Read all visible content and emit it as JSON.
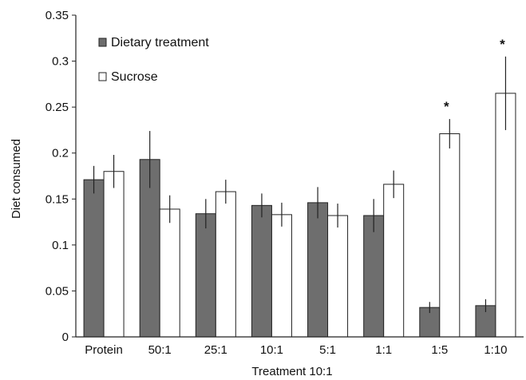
{
  "chart_data": {
    "type": "bar",
    "title": "",
    "xlabel": "Treatment 10:1",
    "ylabel": "Diet consumed",
    "categories": [
      "Protein",
      "50:1",
      "25:1",
      "10:1",
      "5:1",
      "1:1",
      "1:5",
      "1:10"
    ],
    "series": [
      {
        "name": "Dietary treatment",
        "color": "#6e6e6e",
        "values": [
          0.171,
          0.193,
          0.134,
          0.143,
          0.146,
          0.132,
          0.032,
          0.034
        ],
        "error": [
          0.015,
          0.031,
          0.016,
          0.013,
          0.017,
          0.018,
          0.006,
          0.007
        ]
      },
      {
        "name": "Sucrose",
        "color": "#ffffff",
        "values": [
          0.18,
          0.139,
          0.158,
          0.133,
          0.132,
          0.166,
          0.221,
          0.265
        ],
        "error": [
          0.018,
          0.015,
          0.013,
          0.013,
          0.013,
          0.015,
          0.016,
          0.04
        ]
      }
    ],
    "significance": [
      {
        "category": "1:5",
        "series": "Sucrose",
        "label": "*"
      },
      {
        "category": "1:10",
        "series": "Sucrose",
        "label": "*"
      }
    ],
    "ylim": [
      0,
      0.35
    ],
    "yticks": [
      0,
      0.05,
      0.1,
      0.15,
      0.2,
      0.25,
      0.3,
      0.35
    ],
    "ytick_labels": [
      "0",
      "0.05",
      "0.1",
      "0.15",
      "0.2",
      "0.25",
      "0.3",
      "0.35"
    ],
    "grid": false,
    "legend_position": "top-left"
  }
}
